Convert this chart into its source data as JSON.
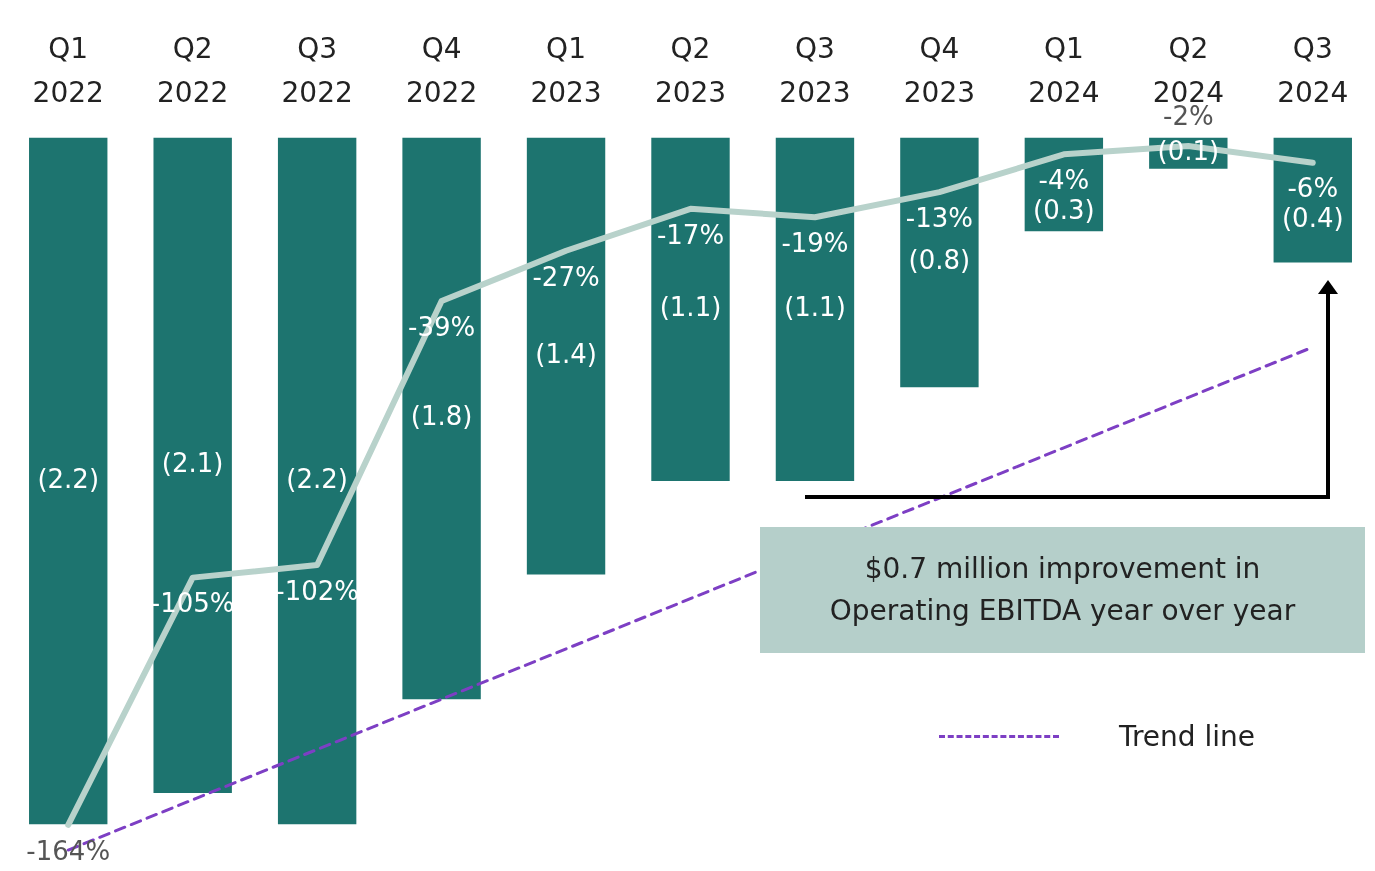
{
  "chart_data": {
    "type": "bar",
    "categories": [
      "Q1 2022",
      "Q2 2022",
      "Q3 2022",
      "Q4 2022",
      "Q1 2023",
      "Q2 2023",
      "Q3 2023",
      "Q4 2023",
      "Q1 2024",
      "Q2 2024",
      "Q3 2024"
    ],
    "series": [
      {
        "color": "#1d746f",
        "values": [
          -2.2,
          -2.1,
          -2.2,
          -1.8,
          -1.4,
          -1.1,
          -1.1,
          -0.8,
          -0.3,
          -0.1,
          -0.4
        ],
        "value_labels": [
          "(2.2)",
          "(2.1)",
          "(2.2)",
          "(1.8)",
          "(1.4)",
          "(1.1)",
          "(1.1)",
          "(0.8)",
          "(0.3)",
          "(0.1)",
          "(0.4)"
        ]
      },
      {
        "type": "line",
        "axis": "y2",
        "color": "#b8d2cb",
        "values": [
          -164,
          -105,
          -102,
          -39,
          -27,
          -17,
          -19,
          -13,
          -4,
          -2,
          -6
        ],
        "value_labels": [
          "-164%",
          "-105%",
          "-102%",
          "-39%",
          "-27%",
          "-17%",
          "-19%",
          "-13%",
          "-4%",
          "-2%",
          "-6%"
        ]
      },
      {
        "name": "Trend line",
        "type": "line",
        "axis": "y2",
        "color": "#7d3fc4",
        "line_style": "dashed",
        "x": [
          "Q1 2022",
          "Q3 2024"
        ],
        "values": [
          -170,
          -50
        ]
      }
    ],
    "ylim": [
      -2.35,
      0
    ],
    "y2lim": [
      -175,
      0
    ],
    "tick_labels": "x",
    "marker": "none",
    "legend": "bottom right",
    "annotations": [
      "$0.7 million improvement in Operating EBITDA year over year"
    ]
  }
}
